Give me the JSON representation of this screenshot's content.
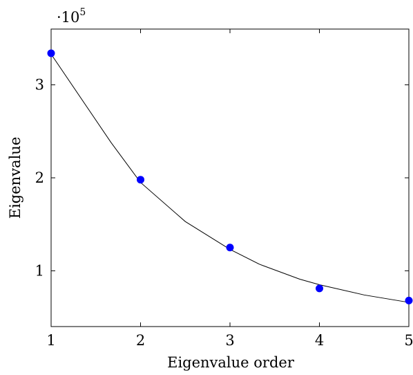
{
  "chart_data": {
    "type": "scatter",
    "title": "",
    "xlabel": "Eigenvalue order",
    "ylabel": "Eigenvalue",
    "y_multiplier": {
      "base": "·10",
      "exponent": "5"
    },
    "xlim": [
      1,
      5
    ],
    "ylim": [
      0.4,
      3.6
    ],
    "x_ticks": [
      1,
      2,
      3,
      4,
      5
    ],
    "y_ticks": [
      1,
      2,
      3
    ],
    "grid": false,
    "series": [
      {
        "type": "scatter",
        "color": "#0000ff",
        "x": [
          1,
          2,
          3,
          4,
          5
        ],
        "y": [
          3.34,
          1.98,
          1.25,
          0.81,
          0.68
        ]
      },
      {
        "type": "line",
        "color": "#000000",
        "x": [
          1,
          1.67,
          2,
          2.5,
          3,
          3.33,
          3.78,
          4,
          4.5,
          5
        ],
        "y": [
          3.33,
          2.38,
          1.95,
          1.53,
          1.23,
          1.07,
          0.91,
          0.85,
          0.74,
          0.66
        ]
      }
    ]
  }
}
